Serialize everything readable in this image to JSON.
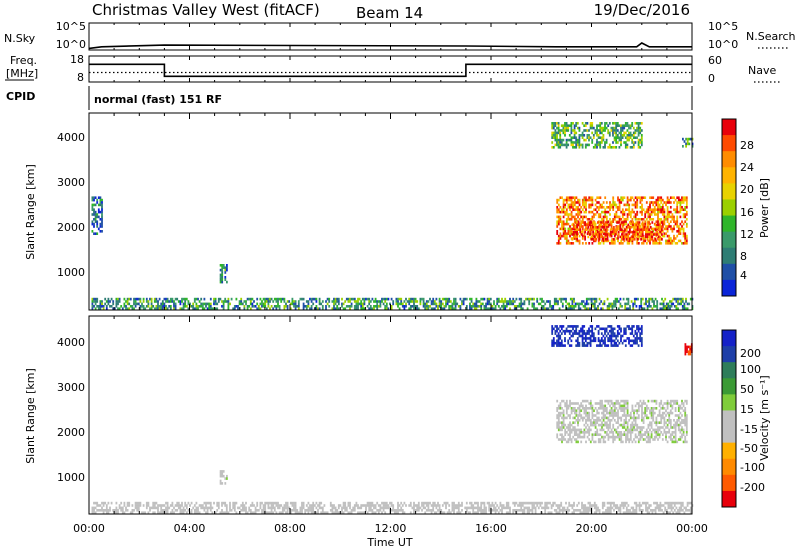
{
  "header": {
    "station": "Christmas Valley West (fitACF)",
    "beam": "Beam 14",
    "date": "19/Dec/2016"
  },
  "panels": {
    "nsky_label": "N.Sky",
    "nsky_ticks": [
      "10^5",
      "10^0"
    ],
    "nsearch_label": "N.Search",
    "nsearch_ticks": [
      "10^5",
      "10^0"
    ],
    "freq_label": "Freq.",
    "freq_unit": "[MHz]",
    "freq_ticks": [
      "18",
      "8"
    ],
    "nave_label": "Nave",
    "nave_ticks": [
      "60",
      "0"
    ],
    "cpid_label": "CPID",
    "cpid_text": "normal (fast) 151 RF"
  },
  "axes": {
    "ylabel": "Slant Range [km]",
    "xlabel": "Time UT",
    "yticks": [
      "4000",
      "3000",
      "2000",
      "1000"
    ],
    "xticks": [
      "00:00",
      "04:00",
      "08:00",
      "12:00",
      "16:00",
      "20:00",
      "00:00"
    ]
  },
  "colorbars": {
    "power": {
      "label": "Power [dB]",
      "ticks": [
        "28",
        "24",
        "20",
        "16",
        "12",
        "8",
        "4"
      ],
      "colors": [
        "#e8000b",
        "#ff4a00",
        "#ff8c00",
        "#ffb300",
        "#e8d200",
        "#9bd000",
        "#2fb52a",
        "#3a9a6a",
        "#2e7d74",
        "#1f4fa6",
        "#0b25d8"
      ]
    },
    "velocity": {
      "label": "Velocity [m s⁻¹]",
      "ticks": [
        "200",
        "100",
        "50",
        "15",
        "-15",
        "-50",
        "-100",
        "-200"
      ],
      "colors": [
        "#1522c8",
        "#1e3fa8",
        "#2e7d5a",
        "#3b9a35",
        "#7fcc3a",
        "#c0c0c0",
        "#c0c0c0",
        "#ffb000",
        "#ff8a00",
        "#ff5a00",
        "#e8000b"
      ]
    }
  },
  "chart_data": [
    {
      "type": "line",
      "name": "nsky-nsearch",
      "x_hours": [
        0,
        0.5,
        3,
        15,
        18.6,
        21.8,
        22.0,
        22.3,
        24
      ],
      "nsky_log": [
        0.3,
        0.6,
        0.9,
        0.75,
        0.6,
        0.6,
        1.3,
        0.6,
        0.6
      ],
      "ylim": [
        0,
        5
      ]
    },
    {
      "type": "line",
      "name": "freq-nave",
      "x_hours": [
        0,
        3,
        3,
        15,
        15,
        24
      ],
      "freq_mhz": [
        14.8,
        14.8,
        10.2,
        10.2,
        14.8,
        14.8
      ],
      "nave_level": [
        22,
        22,
        22,
        22,
        22,
        22
      ],
      "freq_lim": [
        8,
        18
      ],
      "nave_lim": [
        0,
        60
      ]
    },
    {
      "type": "heatmap",
      "name": "power-rti",
      "x_range_hours": [
        0,
        24
      ],
      "y_range_km": [
        180,
        4550
      ],
      "regions": [
        {
          "x0": 18.6,
          "x1": 23.8,
          "y0": 1650,
          "y1": 2700,
          "value_db": 24
        },
        {
          "x0": 19.2,
          "x1": 22.8,
          "y0": 1750,
          "y1": 2150,
          "value_db": 28
        },
        {
          "x0": 0.1,
          "x1": 24,
          "y0": 200,
          "y1": 450,
          "value_db": 10
        },
        {
          "x0": 5.2,
          "x1": 5.5,
          "y0": 800,
          "y1": 1200,
          "value_db": 8
        },
        {
          "x0": 0.1,
          "x1": 0.5,
          "y0": 1900,
          "y1": 2700,
          "value_db": 6
        },
        {
          "x0": 18.4,
          "x1": 22.0,
          "y0": 3800,
          "y1": 4350,
          "value_db": 12
        },
        {
          "x0": 23.6,
          "x1": 24,
          "y0": 3800,
          "y1": 4000,
          "value_db": 10
        }
      ]
    },
    {
      "type": "heatmap",
      "name": "velocity-rti",
      "x_range_hours": [
        0,
        24
      ],
      "y_range_km": [
        180,
        4550
      ],
      "regions": [
        {
          "x0": 18.6,
          "x1": 23.8,
          "y0": 1750,
          "y1": 2700,
          "value_ms": 0
        },
        {
          "x0": 0.1,
          "x1": 24,
          "y0": 200,
          "y1": 450,
          "value_ms": -30
        },
        {
          "x0": 5.2,
          "x1": 5.5,
          "y0": 850,
          "y1": 1150,
          "value_ms": 0
        },
        {
          "x0": 18.4,
          "x1": 22.0,
          "y0": 3900,
          "y1": 4350,
          "value_ms": 200
        },
        {
          "x0": 23.7,
          "x1": 24,
          "y0": 3700,
          "y1": 3950,
          "value_ms": -200
        }
      ]
    }
  ]
}
